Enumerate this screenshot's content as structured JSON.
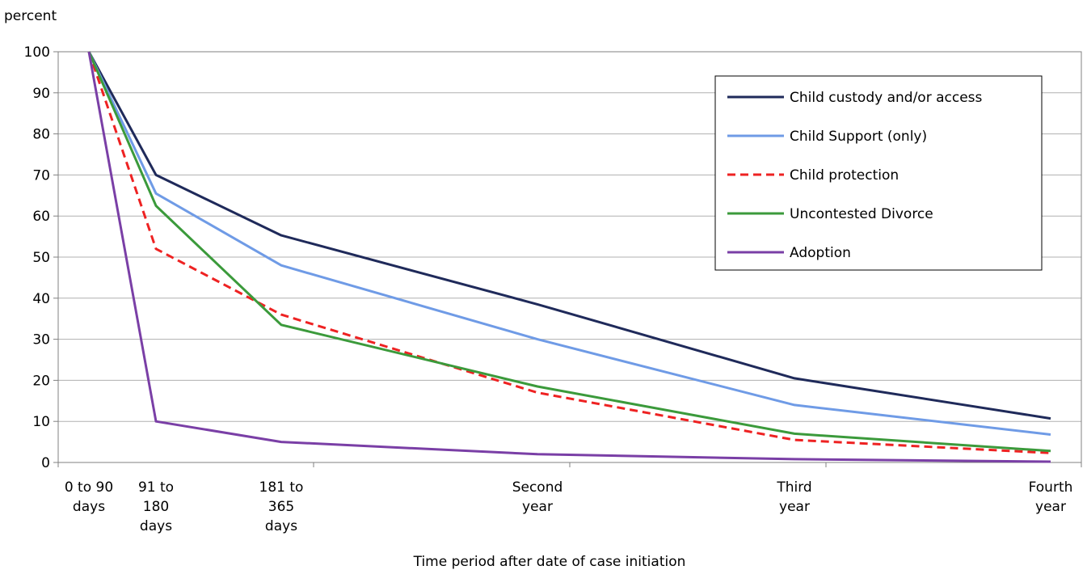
{
  "chart_data": {
    "type": "line",
    "ylabel": "percent",
    "xlabel": "Time period after date of case initiation",
    "ylim": [
      0,
      100
    ],
    "y_ticks": [
      0,
      10,
      20,
      30,
      40,
      50,
      60,
      70,
      80,
      90,
      100
    ],
    "grid": true,
    "legend_position": "top-right",
    "categories": [
      [
        "0 to 90",
        "days"
      ],
      [
        "91 to",
        "180",
        "days"
      ],
      [
        "181 to",
        "365",
        "days"
      ],
      [
        "Second",
        "year"
      ],
      [
        "Third",
        "year"
      ],
      [
        "Fourth",
        "year"
      ]
    ],
    "series": [
      {
        "name": "Child custody and/or access",
        "color": "#1f2a5a",
        "dash": "solid",
        "values": [
          100,
          70,
          55.3,
          38.5,
          20.5,
          10.7
        ]
      },
      {
        "name": "Child Support (only)",
        "color": "#6f9be6",
        "dash": "solid",
        "values": [
          100,
          65.5,
          48,
          30,
          14,
          6.8
        ]
      },
      {
        "name": "Child protection",
        "color": "#ee2222",
        "dash": "dashed",
        "values": [
          100,
          52,
          36,
          17,
          5.5,
          2.3
        ]
      },
      {
        "name": "Uncontested Divorce",
        "color": "#3b9a3b",
        "dash": "solid",
        "values": [
          100,
          62.5,
          33.5,
          18.5,
          7,
          2.8
        ]
      },
      {
        "name": "Adoption",
        "color": "#7a3fa6",
        "dash": "solid",
        "values": [
          100,
          10,
          5,
          2,
          0.8,
          0.2
        ]
      }
    ]
  }
}
